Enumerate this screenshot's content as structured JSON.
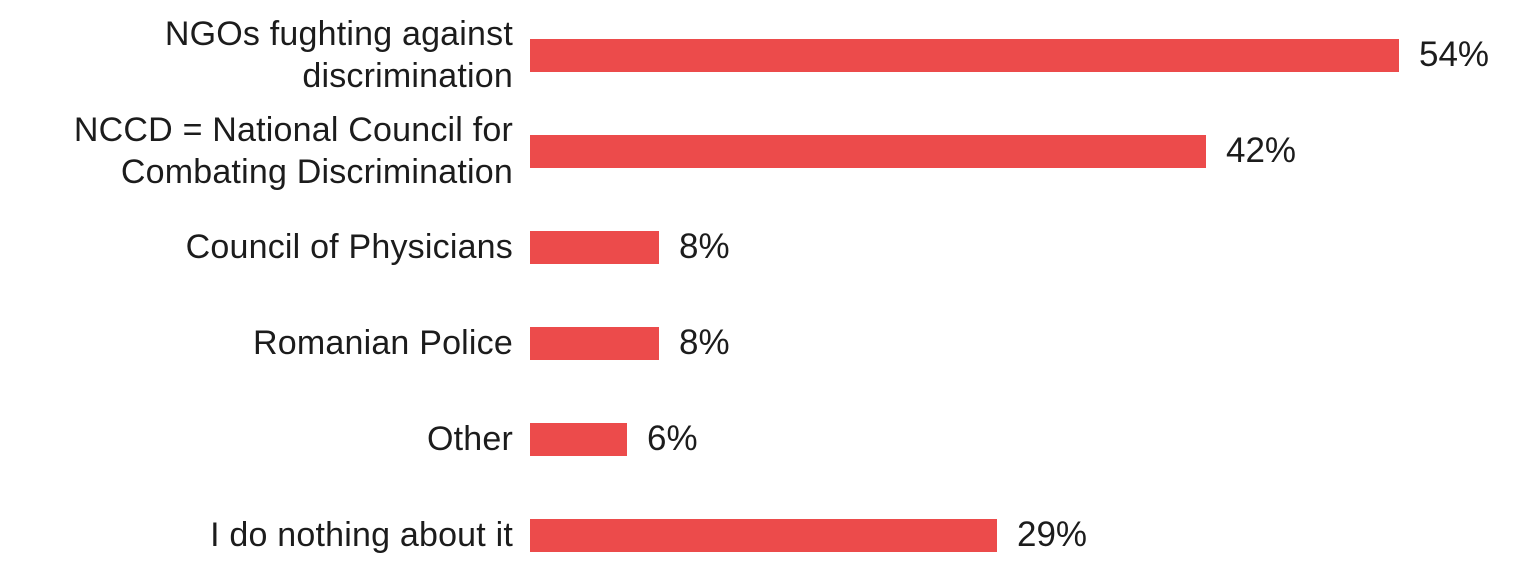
{
  "chart_data": {
    "type": "bar",
    "orientation": "horizontal",
    "title": "",
    "xlabel": "",
    "ylabel": "",
    "categories": [
      "NGOs fughting against discrimination",
      "NCCD = National Council for Combating Discrimination",
      "Council of Physicians",
      "Romanian Police",
      "Other",
      "I do nothing about it"
    ],
    "label_lines": [
      [
        "NGOs fughting against",
        "discrimination"
      ],
      [
        "NCCD = National Council for",
        "Combating Discrimination"
      ],
      [
        "Council of Physicians"
      ],
      [
        "Romanian Police"
      ],
      [
        "Other"
      ],
      [
        "I do nothing about it"
      ]
    ],
    "values": [
      54,
      42,
      8,
      8,
      6,
      29
    ],
    "value_labels": [
      "54%",
      "42%",
      "8%",
      "8%",
      "6%",
      "29%"
    ],
    "xlim": [
      0,
      60
    ],
    "grid": false,
    "legend": false,
    "bar_color": "#EC4B4B",
    "text_color": "#1c1c1c",
    "background_color": "#ffffff"
  }
}
